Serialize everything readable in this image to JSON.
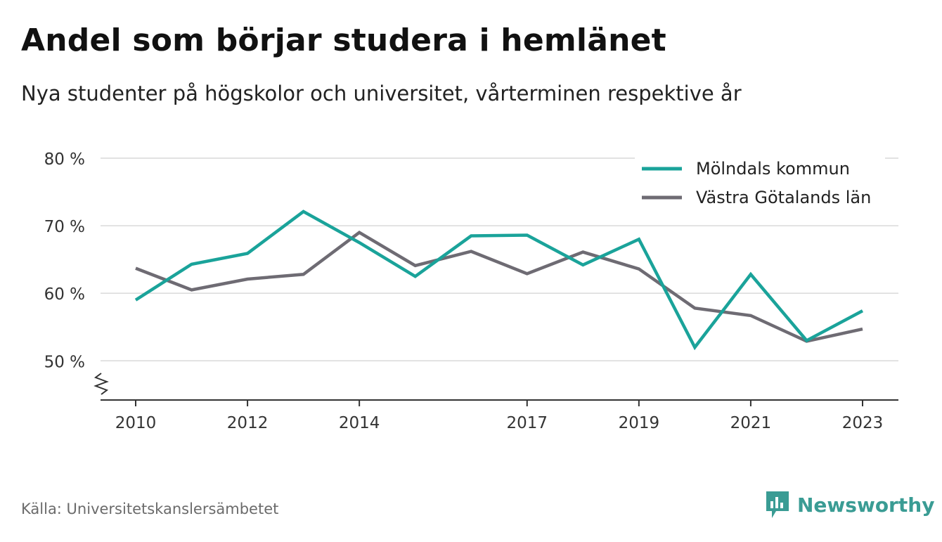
{
  "title": "Andel som börjar studera i hemlänet",
  "subtitle": "Nya studenter på högskolor och universitet, vårterminen respektive år",
  "source": "Källa: Universitetskanslersämbetet",
  "brand": "Newsworthy",
  "colors": {
    "molndal": "#1aa39a",
    "vg": "#6e6b73",
    "grid": "#d9d9d9",
    "axis": "#333333",
    "brand": "#3a9c94"
  },
  "chart_data": {
    "type": "line",
    "x": [
      2010,
      2011,
      2012,
      2013,
      2014,
      2015,
      2016,
      2017,
      2018,
      2019,
      2020,
      2021,
      2022,
      2023
    ],
    "xticks": [
      2010,
      2012,
      2014,
      2017,
      2019,
      2021,
      2023
    ],
    "xtick_labels": [
      "2010",
      "2012",
      "2014",
      "2017",
      "2019",
      "2021",
      "2023"
    ],
    "yticks": [
      50,
      60,
      70,
      80
    ],
    "ytick_labels": [
      "50 %",
      "60 %",
      "70 %",
      "80 %"
    ],
    "ylim": [
      44.2,
      80
    ],
    "axis_break": true,
    "grid": true,
    "legend_position": "top-right",
    "series": [
      {
        "name": "Mölndals kommun",
        "color": "#1aa39a",
        "values": [
          59.0,
          64.3,
          65.9,
          72.1,
          67.5,
          62.5,
          68.5,
          68.6,
          64.2,
          68.0,
          52.0,
          62.8,
          53.0,
          57.4
        ]
      },
      {
        "name": "Västra Götalands län",
        "color": "#6e6b73",
        "values": [
          63.7,
          60.5,
          62.1,
          62.8,
          69.0,
          64.1,
          66.2,
          62.9,
          66.1,
          63.6,
          57.8,
          56.7,
          52.9,
          54.7
        ]
      }
    ]
  }
}
